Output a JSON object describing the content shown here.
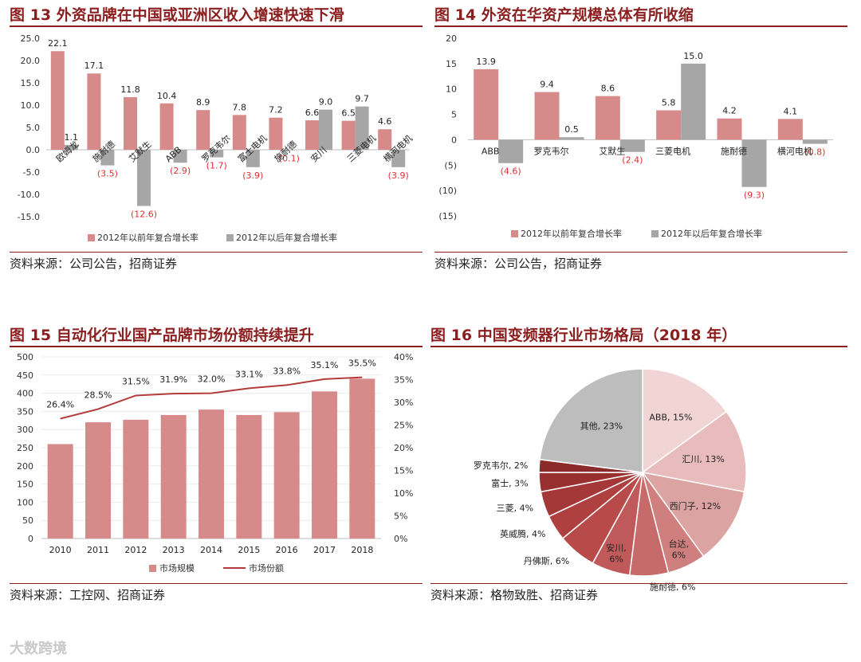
{
  "colors": {
    "pink": "#d78a8a",
    "gray": "#a6a6a6",
    "line": "#b23c3c",
    "neg_label": "#e03030",
    "title": "#8b1f1f"
  },
  "panels": [
    {
      "title_prefix": "图",
      "title_num": "13",
      "title_text": "外资品牌在中国或亚洲区收入增速快速下滑",
      "source": "资料来源：公司公告，招商证券"
    },
    {
      "title_prefix": "图",
      "title_num": "14",
      "title_text": "外资在华资产规模总体有所收缩",
      "source": "资料来源：公司公告，招商证券"
    },
    {
      "title_prefix": "图",
      "title_num": "15",
      "title_text": "自动化行业国产品牌市场份额持续提升",
      "source": "资料来源：工控网、招商证券"
    },
    {
      "title_prefix": "图",
      "title_num": "16",
      "title_text": "中国变频器行业市场格局（2018 年）",
      "source": "资料来源：格物致胜、招商证券"
    }
  ],
  "watermark": "大数跨境",
  "chart_data": [
    {
      "type": "bar",
      "categories": [
        "欧姆龙",
        "施耐德",
        "艾默生",
        "ABB",
        "罗克韦尔",
        "富士电机",
        "施耐德",
        "安川",
        "三菱电机",
        "横河电机"
      ],
      "series": [
        {
          "name": "2012年以前年复合增长率",
          "values": [
            22.1,
            17.1,
            11.8,
            10.4,
            8.9,
            7.8,
            7.2,
            6.6,
            6.5,
            4.6
          ],
          "labels": [
            "22.1",
            "17.1",
            "11.8",
            "10.4",
            "8.9",
            "7.8",
            "7.2",
            "6.6",
            "6.5",
            "4.6"
          ]
        },
        {
          "name": "2012年以后年复合增长率",
          "values": [
            1.1,
            -3.5,
            -12.6,
            -2.9,
            -1.7,
            -3.9,
            -0.1,
            9.0,
            9.7,
            -3.9
          ],
          "labels": [
            "1.1",
            "(3.5)",
            "(12.6)",
            "(2.9)",
            "(1.7)",
            "(3.9)",
            "(0.1)",
            "9.0",
            "9.7",
            "(3.9)"
          ]
        }
      ],
      "yticks": [
        "25.0",
        "20.0",
        "15.0",
        "10.0",
        "5.0",
        "0.0",
        "-5.0",
        "-10.0",
        "-15.0"
      ],
      "ylim": [
        -15,
        25
      ]
    },
    {
      "type": "bar",
      "categories": [
        "ABB",
        "罗克韦尔",
        "艾默生",
        "三菱电机",
        "施耐德",
        "横河电机"
      ],
      "series": [
        {
          "name": "2012年以前年复合增长率",
          "values": [
            13.9,
            9.4,
            8.6,
            5.8,
            4.2,
            4.1
          ],
          "labels": [
            "13.9",
            "9.4",
            "8.6",
            "5.8",
            "4.2",
            "4.1"
          ]
        },
        {
          "name": "2012年以后年复合增长率",
          "values": [
            -4.6,
            0.5,
            -2.4,
            15.0,
            -9.3,
            -0.8
          ],
          "labels": [
            "(4.6)",
            "0.5",
            "(2.4)",
            "15.0",
            "(9.3)",
            "(0.8)"
          ]
        }
      ],
      "yticks": [
        "20",
        "15",
        "10",
        "5",
        "0",
        "(5)",
        "(10)",
        "(15)"
      ],
      "ylim": [
        -15,
        20
      ]
    },
    {
      "type": "bar",
      "categories": [
        "2010",
        "2011",
        "2012",
        "2013",
        "2014",
        "2015",
        "2016",
        "2017",
        "2018"
      ],
      "series": [
        {
          "name": "市场规模",
          "values": [
            260,
            320,
            327,
            340,
            355,
            340,
            348,
            405,
            440
          ]
        },
        {
          "name": "市场份额",
          "values": [
            26.4,
            28.5,
            31.5,
            31.9,
            32.0,
            33.1,
            33.8,
            35.1,
            35.5
          ],
          "labels": [
            "26.4%",
            "28.5%",
            "31.5%",
            "31.9%",
            "32.0%",
            "33.1%",
            "33.8%",
            "35.1%",
            "35.5%"
          ]
        }
      ],
      "yticks_left": [
        "500",
        "450",
        "400",
        "350",
        "300",
        "250",
        "200",
        "150",
        "100",
        "50",
        "0"
      ],
      "yticks_right": [
        "40%",
        "35%",
        "30%",
        "25%",
        "20%",
        "15%",
        "10%",
        "5%",
        "0%"
      ],
      "ylim": [
        0,
        500
      ],
      "y2lim": [
        0,
        40
      ]
    },
    {
      "type": "pie",
      "slices": [
        {
          "label": "ABB, 15%",
          "value": 15,
          "color": "#f1d4d4"
        },
        {
          "label": "汇川, 13%",
          "value": 13,
          "color": "#e8bcbc"
        },
        {
          "label": "西门子, 12%",
          "value": 12,
          "color": "#dca3a3"
        },
        {
          "label": "台达, 6%",
          "value": 6,
          "color": "#d07f7f"
        },
        {
          "label": "施耐德, 6%",
          "value": 6,
          "color": "#c66a6a"
        },
        {
          "label": "安川, 6%",
          "value": 6,
          "color": "#c05a5a"
        },
        {
          "label": "丹佛斯, 6%",
          "value": 6,
          "color": "#b84a4a"
        },
        {
          "label": "英威腾, 4%",
          "value": 4,
          "color": "#ae4040"
        },
        {
          "label": "三菱, 4%",
          "value": 4,
          "color": "#a43838"
        },
        {
          "label": "富士, 3%",
          "value": 3,
          "color": "#983030"
        },
        {
          "label": "罗克韦尔, 2%",
          "value": 2,
          "color": "#8b2a2a"
        },
        {
          "label": "其他, 23%",
          "value": 23,
          "color": "#bdbdbd"
        }
      ]
    }
  ]
}
